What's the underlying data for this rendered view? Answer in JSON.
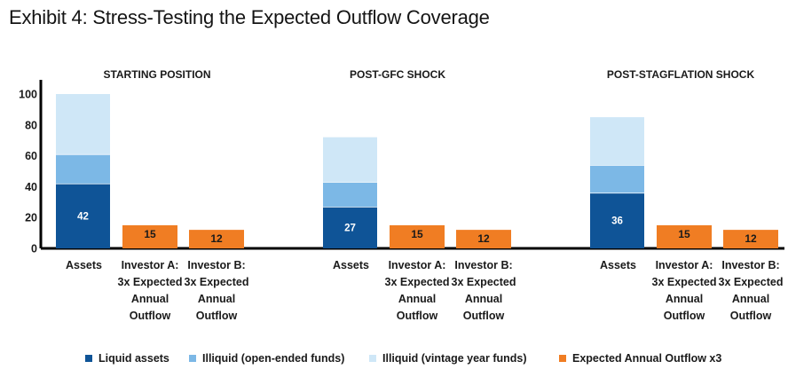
{
  "title": "Exhibit 4: Stress-Testing the Expected Outflow Coverage",
  "colors": {
    "liquid": "#0F5497",
    "illiquid_open": "#7CB8E6",
    "illiquid_vintage": "#CFE7F7",
    "outflow": "#F07D23",
    "axis": "#000000"
  },
  "legend": [
    {
      "label": "Liquid assets",
      "color": "#0F5497"
    },
    {
      "label": "Illiquid (open-ended funds)",
      "color": "#7CB8E6"
    },
    {
      "label": "Illiquid (vintage year funds)",
      "color": "#CFE7F7"
    },
    {
      "label": "Expected Annual Outflow x3",
      "color": "#F07D23"
    }
  ],
  "chart_data": {
    "type": "bar",
    "ylim": [
      0,
      100
    ],
    "yticks": [
      0,
      20,
      40,
      60,
      80,
      100
    ],
    "grid": false,
    "legend_position": "bottom",
    "category_labels": [
      "Assets",
      "Investor A: 3x Expected Annual Outflow",
      "Investor B: 3x Expected Annual Outflow"
    ],
    "groups": [
      {
        "name": "STARTING POSITION",
        "assets": {
          "liquid": 42,
          "illiquid_open": 19,
          "illiquid_vintage": 39
        },
        "investor_a": 15,
        "investor_b": 12
      },
      {
        "name": "POST-GFC SHOCK",
        "assets": {
          "liquid": 27,
          "illiquid_open": 16,
          "illiquid_vintage": 29
        },
        "investor_a": 15,
        "investor_b": 12
      },
      {
        "name": "POST-STAGFLATION SHOCK",
        "assets": {
          "liquid": 36,
          "illiquid_open": 18,
          "illiquid_vintage": 31
        },
        "investor_a": 15,
        "investor_b": 12
      }
    ]
  }
}
